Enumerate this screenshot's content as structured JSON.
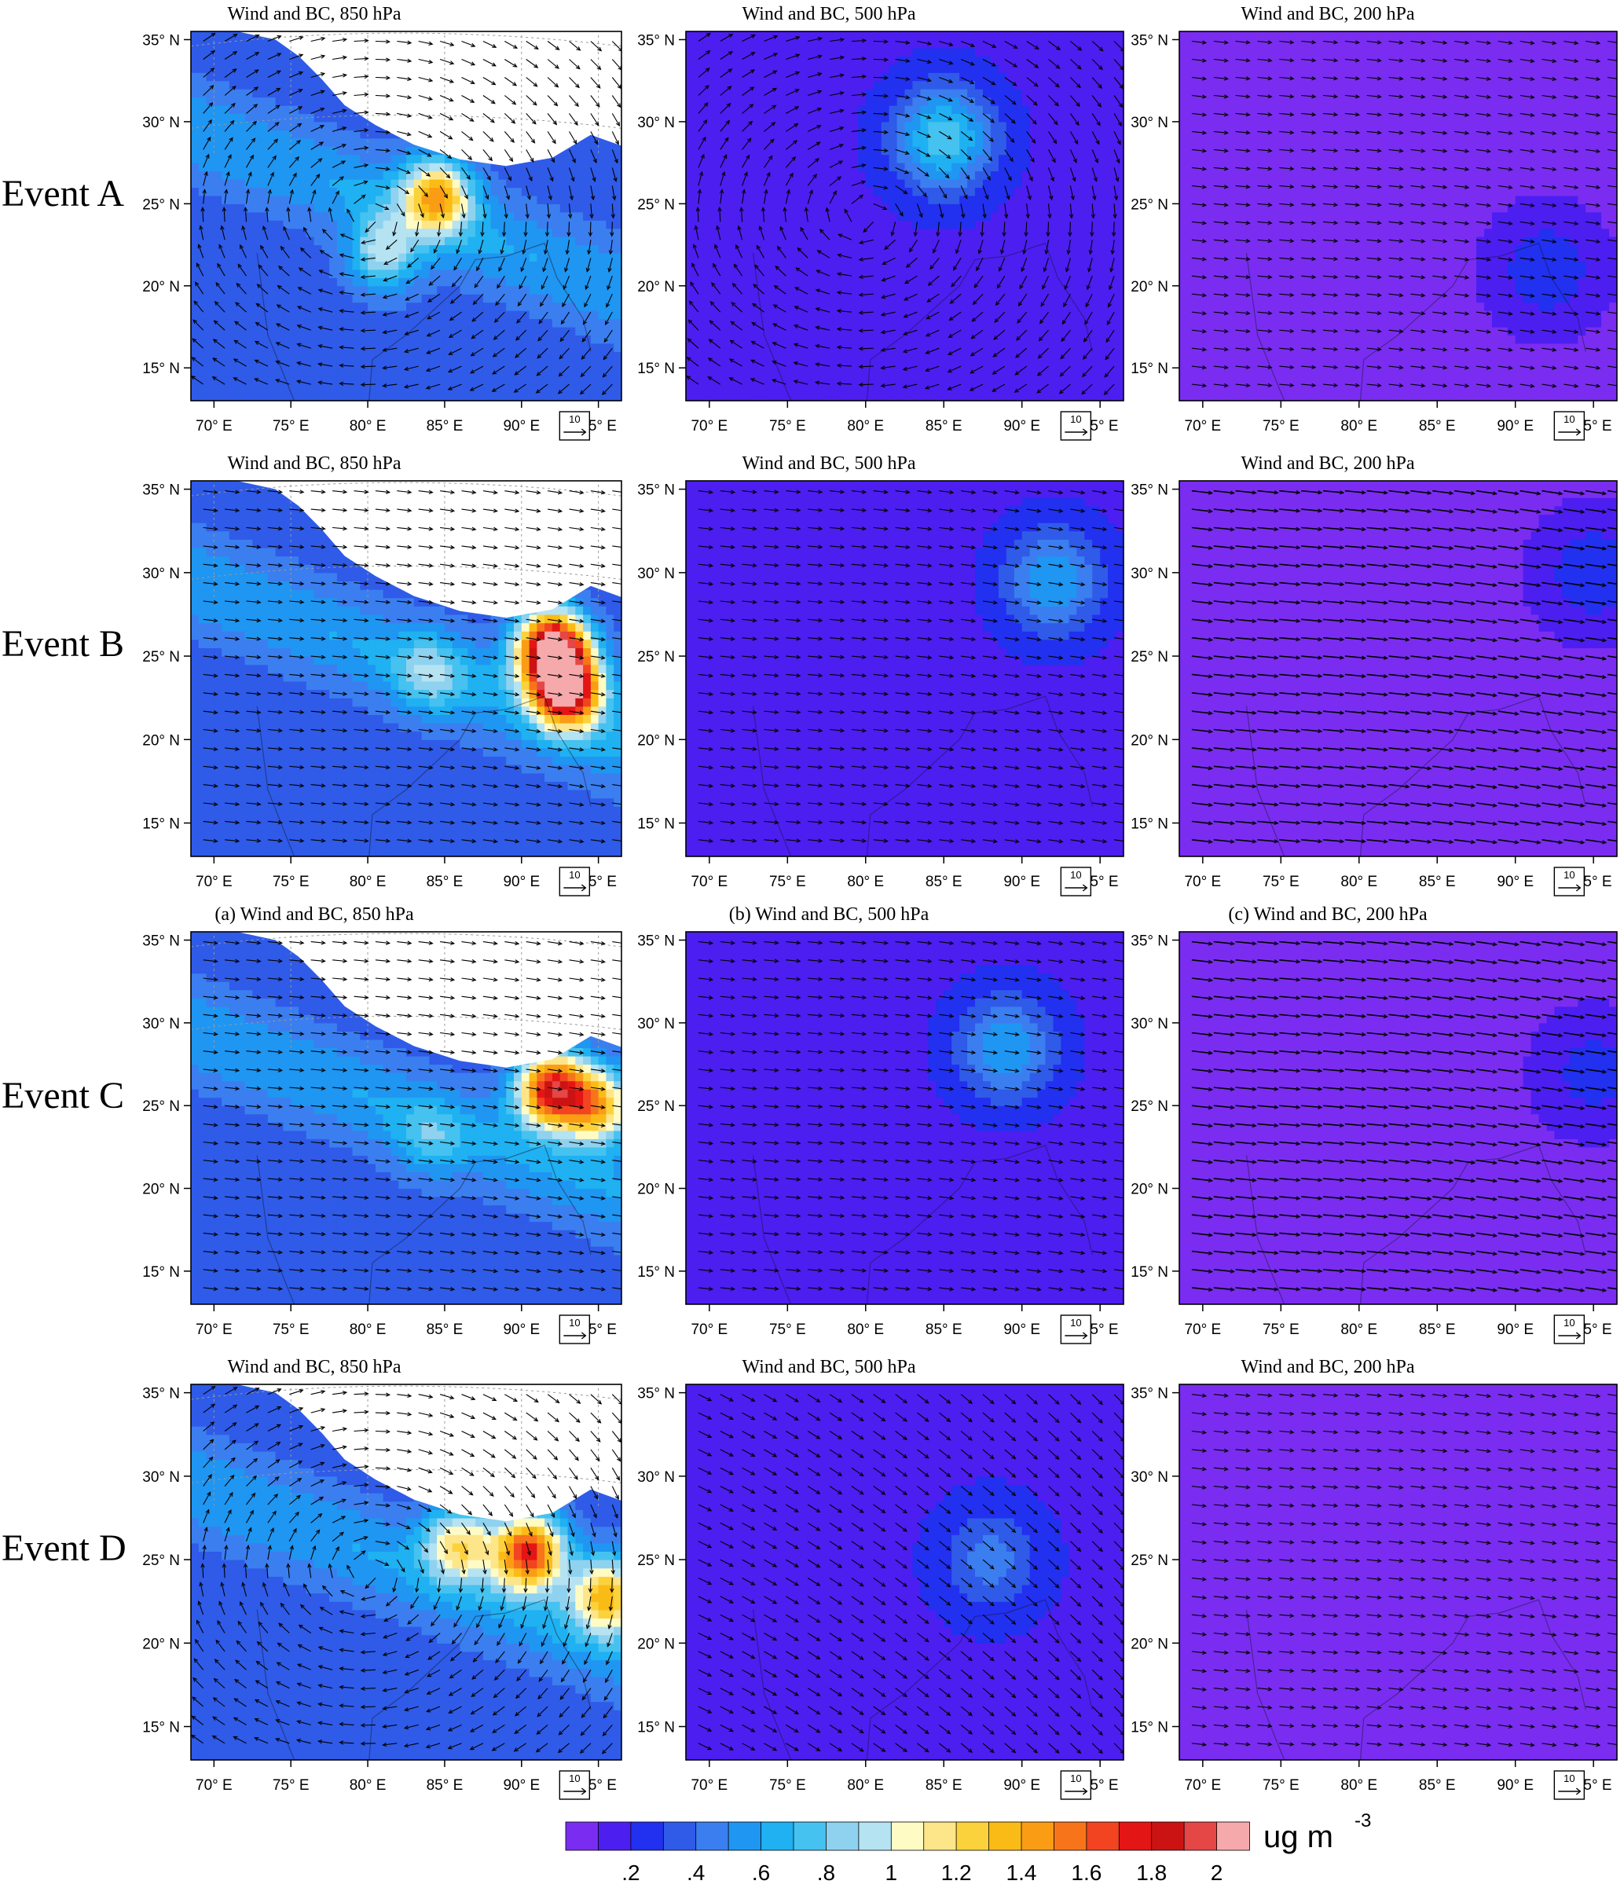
{
  "figure": {
    "rows": [
      {
        "label": "Event A",
        "titles": [
          "Wind and BC, 850 hPa",
          "Wind and BC, 500 hPa",
          "Wind and BC, 200 hPa"
        ]
      },
      {
        "label": "Event B",
        "titles": [
          "Wind and BC, 850 hPa",
          "Wind and BC, 500 hPa",
          "Wind and BC, 200 hPa"
        ]
      },
      {
        "label": "Event C",
        "titles": [
          "(a) Wind and BC, 850 hPa",
          "(b) Wind and BC, 500 hPa",
          "(c) Wind and BC, 200 hPa"
        ]
      },
      {
        "label": "Event D",
        "titles": [
          "Wind and BC, 850 hPa",
          "Wind and BC, 500 hPa",
          "Wind and BC, 200 hPa"
        ]
      }
    ],
    "lat_ticks": [
      "35° N",
      "30° N",
      "25° N",
      "20° N",
      "15° N"
    ],
    "lon_ticks": [
      "70° E",
      "75° E",
      "80° E",
      "85° E",
      "90° E",
      "95° E"
    ],
    "reference_vector": "10",
    "colors": {
      "low": "#7b2ff0",
      "masked": "#ffffff"
    }
  },
  "colorbar": {
    "colors": [
      "#7a2df0",
      "#4d1ef0",
      "#2230f0",
      "#2f5be8",
      "#3b7ef0",
      "#1f96f2",
      "#1fb1f2",
      "#45c2f0",
      "#8fd2ef",
      "#b5e3f2",
      "#fffbc4",
      "#fde58a",
      "#fcd23c",
      "#fbbb16",
      "#fa9d14",
      "#f8741b",
      "#f24420",
      "#e41515",
      "#cc1313",
      "#e54646",
      "#f6a9ab"
    ],
    "tick_labels": [
      ".2",
      ".4",
      ".6",
      ".8",
      "1",
      "1.2",
      "1.4",
      "1.6",
      "1.8",
      "2"
    ],
    "unit": "ug m",
    "unit_exponent": "-3"
  },
  "chart_data": {
    "type": "heatmap",
    "title": "",
    "variable": "BC",
    "xlim": [
      68.5,
      96.5
    ],
    "ylim": [
      13,
      35.5
    ],
    "x_ticks": [
      70,
      75,
      80,
      85,
      90,
      95
    ],
    "y_ticks": [
      15,
      20,
      25,
      30,
      35
    ],
    "reference_vector_magnitude": 10,
    "color_scale": {
      "levels": [
        0.2,
        0.4,
        0.6,
        0.8,
        1.0,
        1.2,
        1.4,
        1.6,
        1.8,
        2.0
      ]
    },
    "panels": [
      {
        "event": "Event A",
        "level": "850 hPa",
        "bc_hotspots": [
          {
            "lon": 84.5,
            "lat": 25.5,
            "bc": 1.3
          },
          {
            "lon": 81,
            "lat": 22,
            "bc": 0.9
          }
        ],
        "flow": "anticyclonic"
      },
      {
        "event": "Event A",
        "level": "500 hPa",
        "bc_hotspots": [
          {
            "lon": 85,
            "lat": 29,
            "bc": 0.8
          }
        ],
        "flow": "anticyclonic"
      },
      {
        "event": "Event A",
        "level": "200 hPa",
        "bc_hotspots": [
          {
            "lon": 92,
            "lat": 21,
            "bc": 0.3
          }
        ],
        "flow": "westerly"
      },
      {
        "event": "Event B",
        "level": "850 hPa",
        "bc_hotspots": [
          {
            "lon": 93,
            "lat": 23,
            "bc": 1.9
          },
          {
            "lon": 92,
            "lat": 25.5,
            "bc": 2.1
          },
          {
            "lon": 84,
            "lat": 24,
            "bc": 0.7
          }
        ],
        "flow": "westerly"
      },
      {
        "event": "Event B",
        "level": "500 hPa",
        "bc_hotspots": [
          {
            "lon": 92,
            "lat": 29.5,
            "bc": 0.6
          }
        ],
        "flow": "westerly"
      },
      {
        "event": "Event B",
        "level": "200 hPa",
        "bc_hotspots": [
          {
            "lon": 95,
            "lat": 30,
            "bc": 0.3
          }
        ],
        "flow": "strong westerly"
      },
      {
        "event": "Event C",
        "level": "850 hPa",
        "bc_hotspots": [
          {
            "lon": 92,
            "lat": 26,
            "bc": 1.8
          },
          {
            "lon": 95,
            "lat": 25,
            "bc": 1.3
          },
          {
            "lon": 84,
            "lat": 23,
            "bc": 0.6
          }
        ],
        "flow": "westerly"
      },
      {
        "event": "Event C",
        "level": "500 hPa",
        "bc_hotspots": [
          {
            "lon": 89,
            "lat": 28.5,
            "bc": 0.6
          }
        ],
        "flow": "westerly"
      },
      {
        "event": "Event C",
        "level": "200 hPa",
        "bc_hotspots": [
          {
            "lon": 95,
            "lat": 27,
            "bc": 0.25
          }
        ],
        "flow": "strong westerly"
      },
      {
        "event": "Event D",
        "level": "850 hPa",
        "bc_hotspots": [
          {
            "lon": 90.5,
            "lat": 25.5,
            "bc": 1.7
          },
          {
            "lon": 86,
            "lat": 26,
            "bc": 1.1
          },
          {
            "lon": 95.5,
            "lat": 23,
            "bc": 1.3
          }
        ],
        "flow": "anticyclonic"
      },
      {
        "event": "Event D",
        "level": "500 hPa",
        "bc_hotspots": [
          {
            "lon": 88,
            "lat": 25,
            "bc": 0.45
          }
        ],
        "flow": "north-westerly"
      },
      {
        "event": "Event D",
        "level": "200 hPa",
        "bc_hotspots": [],
        "flow": "westerly"
      }
    ]
  }
}
